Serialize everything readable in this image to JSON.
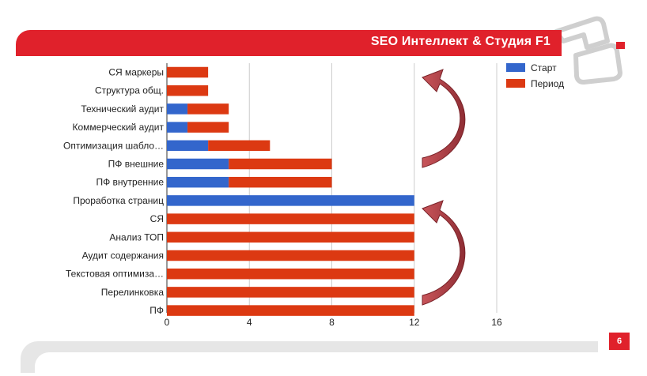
{
  "header": {
    "title": "SEO Интеллект & Студия F1"
  },
  "footer": {
    "page_number": "6"
  },
  "chart_data": {
    "type": "bar",
    "orientation": "horizontal",
    "stacked": true,
    "categories": [
      "СЯ маркеры",
      "Структура общ.",
      "Технический аудит",
      "Коммерческий аудит",
      "Оптимизация шабло…",
      "ПФ внешние",
      "ПФ внутренние",
      "Проработка страниц",
      "СЯ",
      "Анализ ТОП",
      "Аудит содержания",
      "Текстовая оптимиза…",
      "Перелинковка",
      "ПФ"
    ],
    "series": [
      {
        "name": "Старт",
        "color": "#3366cc",
        "values": [
          0,
          0,
          1,
          1,
          2,
          3,
          3,
          12,
          0,
          0,
          0,
          0,
          0,
          0
        ]
      },
      {
        "name": "Период",
        "color": "#dc3912",
        "values": [
          2,
          2,
          2,
          2,
          3,
          5,
          5,
          0,
          12,
          12,
          12,
          12,
          12,
          12
        ]
      }
    ],
    "xlim": [
      0,
      16
    ],
    "xticks": [
      "0",
      "4",
      "8",
      "12",
      "16"
    ],
    "grid": true,
    "legend_position": "right"
  }
}
